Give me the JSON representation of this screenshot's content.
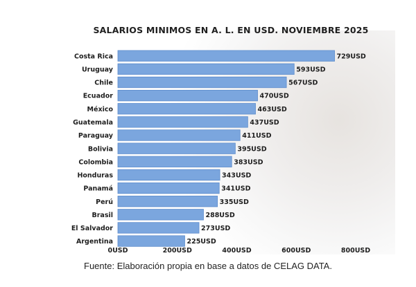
{
  "chart_data": {
    "type": "bar",
    "orientation": "horizontal",
    "title": "SALARIOS MINIMOS EN A. L. EN USD. NOVIEMBRE 2025",
    "categories": [
      "Costa Rica",
      "Uruguay",
      "Chile",
      "Ecuador",
      "México",
      "Guatemala",
      "Paraguay",
      "Bolivia",
      "Colombia",
      "Honduras",
      "Panamá",
      "Perú",
      "Brasil",
      "El Salvador",
      "Argentina"
    ],
    "values": [
      729,
      593,
      567,
      470,
      463,
      437,
      411,
      395,
      383,
      343,
      341,
      335,
      288,
      273,
      225
    ],
    "value_labels": [
      "729USD",
      "593USD",
      "567USD",
      "470USD",
      "463USD",
      "437USD",
      "411USD",
      "395USD",
      "383USD",
      "343USD",
      "341USD",
      "335USD",
      "288USD",
      "273USD",
      "225USD"
    ],
    "x_ticks": [
      0,
      200,
      400,
      600,
      800
    ],
    "x_tick_labels": [
      "0USD",
      "200USD",
      "400USD",
      "600USD",
      "800USD"
    ],
    "xlim": [
      0,
      800
    ],
    "xlabel": "",
    "ylabel": "",
    "grid": false,
    "legend": "none",
    "bar_color": "#7ba6de",
    "bar_edge_color": "#5d8ccc"
  },
  "caption": "Fuente: Elaboración propia en base a datos de CELAG DATA."
}
